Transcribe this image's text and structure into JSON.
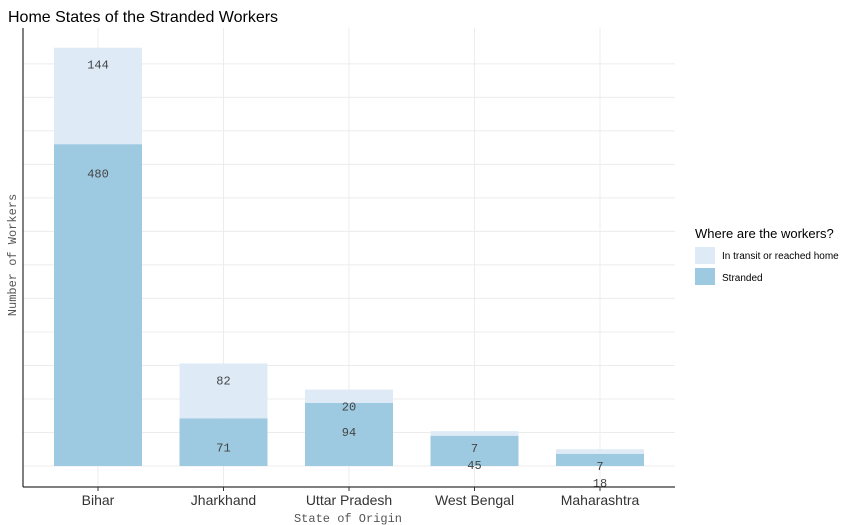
{
  "chart_data": {
    "type": "bar",
    "stacked": true,
    "title": "Home States of the Stranded Workers",
    "xlabel": "State of Origin",
    "ylabel": "Number of Workers",
    "ylim": [
      0,
      640
    ],
    "grid": true,
    "categories": [
      "Bihar",
      "Jharkhand",
      "Uttar Pradesh",
      "West Bengal",
      "Maharashtra"
    ],
    "series": [
      {
        "name": "Stranded",
        "values": [
          480,
          71,
          94,
          45,
          18
        ],
        "color": "#9ecae1"
      },
      {
        "name": "In transit or reached home",
        "values": [
          144,
          82,
          20,
          7,
          7
        ],
        "color": "#deebf7"
      }
    ],
    "legend": {
      "title": "Where are the workers?",
      "position": "right",
      "entries": [
        "In transit or reached home",
        "Stranded"
      ]
    }
  }
}
